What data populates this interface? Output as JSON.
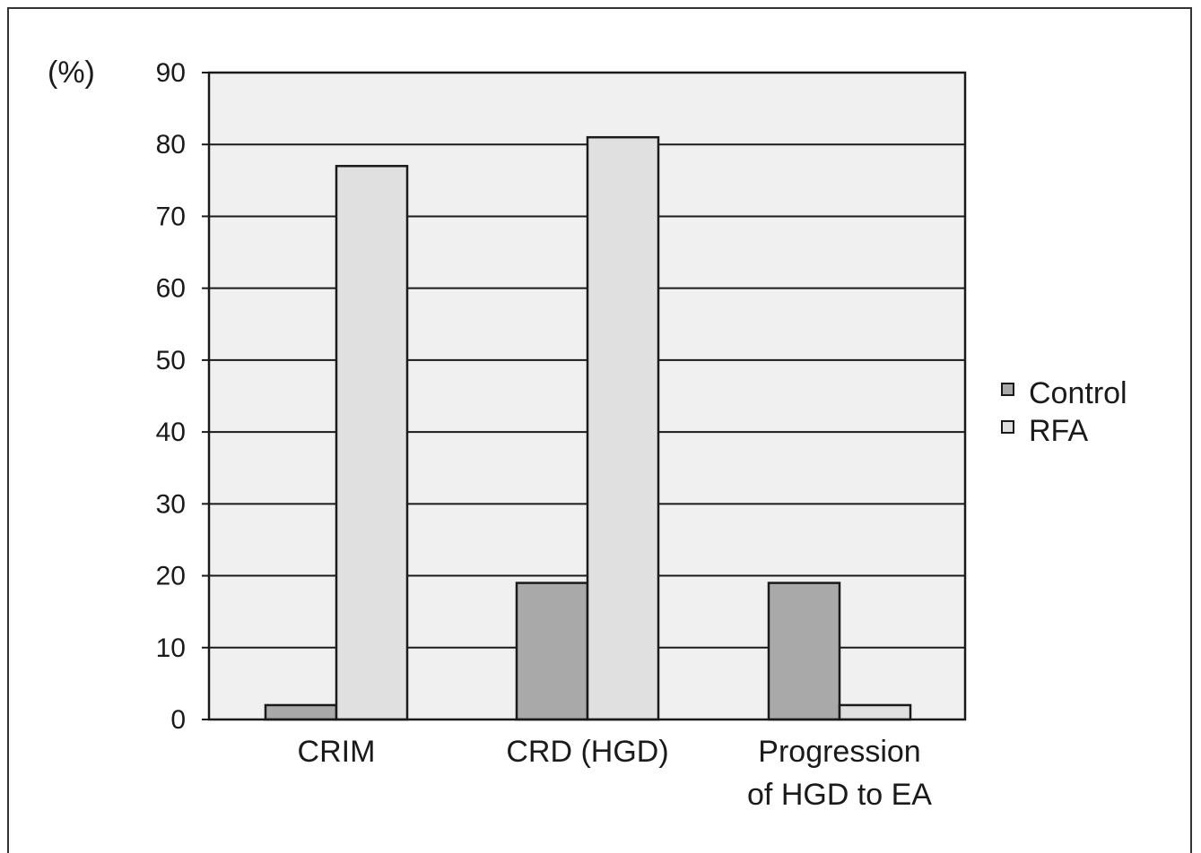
{
  "chart_data": {
    "type": "bar",
    "categories": [
      [
        "CRIM"
      ],
      [
        "CRD (HGD)"
      ],
      [
        "Progression",
        "of HGD to EA"
      ]
    ],
    "series": [
      {
        "name": "Control",
        "values": [
          2,
          19,
          19
        ],
        "color": "#a9a9a9"
      },
      {
        "name": "RFA",
        "values": [
          77,
          81,
          2
        ],
        "color": "#e0e0e0"
      }
    ],
    "ylabel": "(%)",
    "xlabel": "",
    "title": "",
    "ylim": [
      0,
      90
    ],
    "yticks": [
      0,
      10,
      20,
      30,
      40,
      50,
      60,
      70,
      80,
      90
    ],
    "grid": true,
    "legend_position": "right",
    "plot_background": "#f0f0f0"
  }
}
